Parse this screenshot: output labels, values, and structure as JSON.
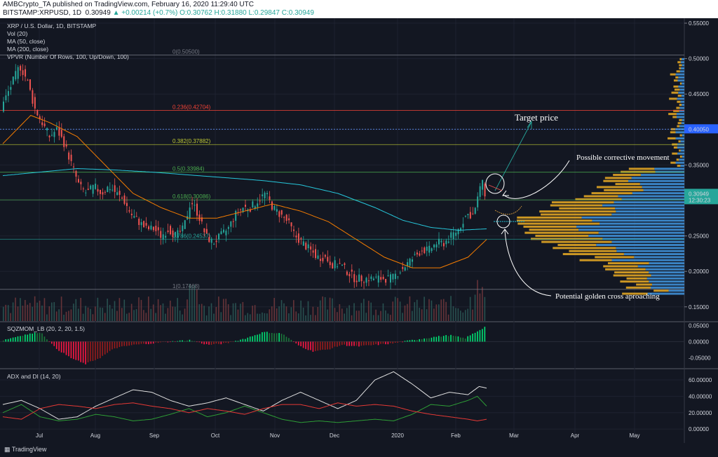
{
  "header": {
    "line1_publisher": "AMBCrypto_TA",
    "line1_rest": " published on TradingView.com, February 16, 2020 11:29:40 UTC",
    "symbol": "BITSTAMP:XRPUSD, 1D",
    "last": "0.30949",
    "change": "▲ +0.00214 (+0.7%)",
    "ohlc": "O:0.30762 H:0.31880 L:0.29847 C:0.30949"
  },
  "legend": {
    "title": "XRP / U.S. Dollar, 1D, BITSTAMP",
    "vol": "Vol (20)",
    "ma50": "MA (50, close)",
    "ma200": "MA (200, close)",
    "vpvr": "VPVR (Number Of Rows, 100, Up/Down, 100)",
    "sqz": "SQZMOM_LB (20, 2, 20, 1.5)",
    "adx": "ADX and DI (14, 20)"
  },
  "annotations": {
    "target": "Target price",
    "corrective": "Possible corrective movement",
    "golden": "Potential golden cross aproaching"
  },
  "price_tags": {
    "target_level": "0.40050",
    "last_price": "0.30949",
    "countdown": "12:30:23"
  },
  "footer": {
    "logo": "TradingView"
  },
  "colors": {
    "bg": "#131722",
    "up": "#26a69a",
    "down": "#ef5350",
    "ma50": "#f57c00",
    "ma200": "#26c6da",
    "vp_up": "#3f8fd6",
    "vp_down": "#e0a424"
  },
  "chart_data": [
    {
      "type": "candlestick",
      "title": "XRP / U.S. Dollar, 1D, BITSTAMP",
      "x_ticks": [
        "Jul",
        "Aug",
        "Sep",
        "Oct",
        "Nov",
        "Dec",
        "2020",
        "Feb",
        "Mar",
        "Apr",
        "May"
      ],
      "y_ticks": [
        "0.55000",
        "0.50000",
        "0.45000",
        "0.40000",
        "0.35000",
        "0.30000",
        "0.25000",
        "0.20000",
        "0.15000"
      ],
      "ylim": [
        0.13,
        0.553
      ],
      "close_path": [
        [
          0,
          0.43
        ],
        [
          5,
          0.46
        ],
        [
          10,
          0.49
        ],
        [
          14,
          0.47
        ],
        [
          18,
          0.43
        ],
        [
          22,
          0.41
        ],
        [
          26,
          0.39
        ],
        [
          30,
          0.4
        ],
        [
          34,
          0.38
        ],
        [
          38,
          0.35
        ],
        [
          42,
          0.32
        ],
        [
          46,
          0.31
        ],
        [
          50,
          0.32
        ],
        [
          54,
          0.31
        ],
        [
          58,
          0.32
        ],
        [
          62,
          0.31
        ],
        [
          66,
          0.3
        ],
        [
          70,
          0.28
        ],
        [
          74,
          0.27
        ],
        [
          78,
          0.26
        ],
        [
          82,
          0.26
        ],
        [
          86,
          0.25
        ],
        [
          90,
          0.26
        ],
        [
          94,
          0.25
        ],
        [
          98,
          0.26
        ],
        [
          102,
          0.3
        ],
        [
          106,
          0.28
        ],
        [
          110,
          0.25
        ],
        [
          114,
          0.24
        ],
        [
          118,
          0.25
        ],
        [
          122,
          0.26
        ],
        [
          126,
          0.28
        ],
        [
          130,
          0.29
        ],
        [
          134,
          0.29
        ],
        [
          138,
          0.3
        ],
        [
          142,
          0.31
        ],
        [
          146,
          0.29
        ],
        [
          150,
          0.28
        ],
        [
          154,
          0.27
        ],
        [
          158,
          0.25
        ],
        [
          162,
          0.24
        ],
        [
          166,
          0.23
        ],
        [
          170,
          0.22
        ],
        [
          174,
          0.22
        ],
        [
          178,
          0.21
        ],
        [
          182,
          0.21
        ],
        [
          186,
          0.2
        ],
        [
          190,
          0.19
        ],
        [
          194,
          0.19
        ],
        [
          198,
          0.19
        ],
        [
          202,
          0.19
        ],
        [
          206,
          0.19
        ],
        [
          210,
          0.19
        ],
        [
          214,
          0.2
        ],
        [
          218,
          0.21
        ],
        [
          222,
          0.22
        ],
        [
          226,
          0.23
        ],
        [
          230,
          0.23
        ],
        [
          234,
          0.24
        ],
        [
          238,
          0.24
        ],
        [
          242,
          0.25
        ],
        [
          246,
          0.26
        ],
        [
          250,
          0.28
        ],
        [
          254,
          0.28
        ],
        [
          256,
          0.3
        ],
        [
          258,
          0.33
        ],
        [
          260,
          0.31
        ]
      ],
      "series": [
        {
          "name": "MA (50, close)",
          "path": [
            [
              0,
              0.38
            ],
            [
              15,
              0.42
            ],
            [
              25,
              0.41
            ],
            [
              40,
              0.39
            ],
            [
              55,
              0.35
            ],
            [
              70,
              0.31
            ],
            [
              85,
              0.29
            ],
            [
              100,
              0.275
            ],
            [
              115,
              0.275
            ],
            [
              130,
              0.285
            ],
            [
              145,
              0.295
            ],
            [
              160,
              0.285
            ],
            [
              175,
              0.27
            ],
            [
              190,
              0.245
            ],
            [
              205,
              0.22
            ],
            [
              220,
              0.205
            ],
            [
              235,
              0.205
            ],
            [
              250,
              0.22
            ],
            [
              260,
              0.245
            ]
          ]
        },
        {
          "name": "MA (200, close)",
          "path": [
            [
              0,
              0.335
            ],
            [
              20,
              0.34
            ],
            [
              40,
              0.345
            ],
            [
              60,
              0.343
            ],
            [
              80,
              0.34
            ],
            [
              100,
              0.336
            ],
            [
              120,
              0.332
            ],
            [
              140,
              0.328
            ],
            [
              160,
              0.322
            ],
            [
              180,
              0.31
            ],
            [
              200,
              0.29
            ],
            [
              215,
              0.272
            ],
            [
              230,
              0.262
            ],
            [
              245,
              0.258
            ],
            [
              260,
              0.26
            ]
          ]
        }
      ],
      "fib_levels": [
        {
          "label": "0(0.50500)",
          "value": 0.505
        },
        {
          "label": "0.236(0.42704)",
          "value": 0.42704
        },
        {
          "label": "0.382(0.37882)",
          "value": 0.37882
        },
        {
          "label": "0.5(0.33984)",
          "value": 0.33984
        },
        {
          "label": "0.618(0.30086)",
          "value": 0.30086
        },
        {
          "label": "0.786(0.24537)",
          "value": 0.24537
        },
        {
          "label": "1(0.17468)",
          "value": 0.17468
        }
      ]
    },
    {
      "type": "bar",
      "title": "SQZMOM_LB (20, 2, 20, 1.5)",
      "y_ticks": [
        "0.05000",
        "0.00000",
        "-0.05000"
      ],
      "ylim": [
        -0.08,
        0.06
      ],
      "path": [
        [
          0,
          0.005
        ],
        [
          10,
          0.02
        ],
        [
          20,
          0.03
        ],
        [
          28,
          -0.02
        ],
        [
          36,
          -0.05
        ],
        [
          44,
          -0.07
        ],
        [
          52,
          -0.05
        ],
        [
          60,
          -0.02
        ],
        [
          70,
          -0.01
        ],
        [
          80,
          -0.005
        ],
        [
          90,
          0.0
        ],
        [
          100,
          0.005
        ],
        [
          110,
          -0.01
        ],
        [
          120,
          -0.005
        ],
        [
          130,
          0.01
        ],
        [
          140,
          0.03
        ],
        [
          150,
          0.025
        ],
        [
          158,
          -0.01
        ],
        [
          166,
          -0.03
        ],
        [
          174,
          -0.025
        ],
        [
          182,
          -0.01
        ],
        [
          190,
          -0.015
        ],
        [
          200,
          -0.01
        ],
        [
          210,
          -0.005
        ],
        [
          220,
          0.005
        ],
        [
          232,
          0.015
        ],
        [
          240,
          0.02
        ],
        [
          248,
          0.01
        ],
        [
          254,
          0.03
        ],
        [
          260,
          0.05
        ]
      ]
    },
    {
      "type": "line",
      "title": "ADX and DI (14, 20)",
      "y_ticks": [
        "60.00000",
        "40.00000",
        "20.00000",
        "0.00000"
      ],
      "ylim": [
        -5,
        72
      ],
      "series": [
        {
          "name": "ADX",
          "path": [
            [
              0,
              30
            ],
            [
              10,
              35
            ],
            [
              20,
              25
            ],
            [
              30,
              12
            ],
            [
              40,
              15
            ],
            [
              50,
              28
            ],
            [
              60,
              38
            ],
            [
              70,
              48
            ],
            [
              80,
              45
            ],
            [
              90,
              35
            ],
            [
              100,
              28
            ],
            [
              110,
              32
            ],
            [
              120,
              38
            ],
            [
              130,
              30
            ],
            [
              140,
              22
            ],
            [
              150,
              35
            ],
            [
              160,
              45
            ],
            [
              170,
              35
            ],
            [
              180,
              25
            ],
            [
              190,
              35
            ],
            [
              200,
              60
            ],
            [
              210,
              70
            ],
            [
              220,
              55
            ],
            [
              230,
              38
            ],
            [
              240,
              45
            ],
            [
              250,
              42
            ],
            [
              256,
              52
            ],
            [
              260,
              50
            ]
          ]
        },
        {
          "name": "+DI",
          "path": [
            [
              0,
              20
            ],
            [
              10,
              30
            ],
            [
              20,
              15
            ],
            [
              30,
              10
            ],
            [
              40,
              12
            ],
            [
              50,
              18
            ],
            [
              60,
              15
            ],
            [
              70,
              10
            ],
            [
              80,
              12
            ],
            [
              90,
              18
            ],
            [
              100,
              25
            ],
            [
              110,
              15
            ],
            [
              120,
              20
            ],
            [
              130,
              28
            ],
            [
              140,
              20
            ],
            [
              150,
              12
            ],
            [
              160,
              8
            ],
            [
              170,
              10
            ],
            [
              180,
              8
            ],
            [
              190,
              10
            ],
            [
              200,
              12
            ],
            [
              210,
              10
            ],
            [
              220,
              18
            ],
            [
              230,
              30
            ],
            [
              240,
              28
            ],
            [
              250,
              35
            ],
            [
              255,
              40
            ],
            [
              260,
              28
            ]
          ]
        },
        {
          "name": "-DI",
          "path": [
            [
              0,
              15
            ],
            [
              10,
              12
            ],
            [
              20,
              25
            ],
            [
              30,
              30
            ],
            [
              40,
              28
            ],
            [
              50,
              25
            ],
            [
              60,
              30
            ],
            [
              70,
              32
            ],
            [
              80,
              28
            ],
            [
              90,
              25
            ],
            [
              100,
              20
            ],
            [
              110,
              25
            ],
            [
              120,
              22
            ],
            [
              130,
              18
            ],
            [
              140,
              25
            ],
            [
              150,
              30
            ],
            [
              160,
              30
            ],
            [
              170,
              25
            ],
            [
              180,
              32
            ],
            [
              190,
              28
            ],
            [
              200,
              30
            ],
            [
              210,
              28
            ],
            [
              220,
              22
            ],
            [
              230,
              18
            ],
            [
              240,
              15
            ],
            [
              250,
              12
            ],
            [
              255,
              10
            ],
            [
              260,
              12
            ]
          ]
        }
      ]
    }
  ]
}
